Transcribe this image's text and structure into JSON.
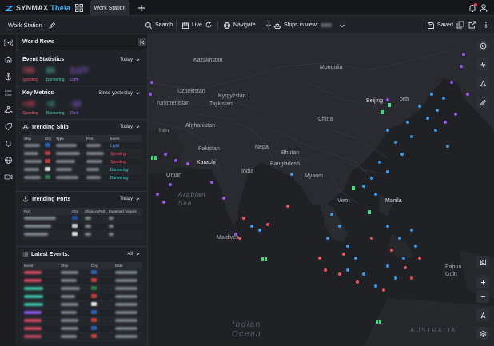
{
  "app": {
    "brand_left": "SYNMAX",
    "brand_right": "Theia",
    "tab_label": "Work Station"
  },
  "toolbar": {
    "workspace_name": "Work Station",
    "search_label": "Search",
    "live_label": "Live",
    "navigate_label": "Navigate",
    "ships_in_view_label": "Ships in view:",
    "saved_label": "Saved"
  },
  "panel": {
    "title": "World News",
    "event_stats": {
      "title": "Event Statistics",
      "filter": "Today",
      "items": [
        {
          "label": "Spoofing",
          "color": "#ff4d6a"
        },
        {
          "label": "Bunkering",
          "color": "#4ad0b0"
        },
        {
          "label": "Dark",
          "color": "#a266ff"
        }
      ]
    },
    "key_metrics": {
      "title": "Key Metrics",
      "filter": "Since yesterday",
      "items": [
        {
          "label": "Spoofing",
          "color": "#ff4d6a"
        },
        {
          "label": "Bunkering",
          "color": "#4ad0b0"
        },
        {
          "label": "Dark",
          "color": "#a266ff"
        }
      ]
    },
    "trending_ship": {
      "title": "Trending Ship",
      "filter": "Today",
      "columns": [
        "Ship",
        "Ctry",
        "Type",
        "Port",
        "Event"
      ],
      "events": [
        {
          "label": "Light",
          "color": "#4aa8ff"
        },
        {
          "label": "Spoofing",
          "color": "#ff4d6a"
        },
        {
          "label": "Spoofing",
          "color": "#ff4d6a"
        },
        {
          "label": "Bunkering",
          "color": "#37d7d0"
        },
        {
          "label": "Bunkering",
          "color": "#37d7d0"
        }
      ]
    },
    "trending_ports": {
      "title": "Trending Ports",
      "filter": "Today",
      "columns": [
        "Port",
        "Ctry",
        "Ships in Port",
        "Expected Arrivals"
      ]
    },
    "latest_events": {
      "title": "Latest Events:",
      "filter": "All",
      "columns": [
        "Event",
        "Ship",
        "Ctry",
        "Date"
      ]
    }
  },
  "map": {
    "labels": {
      "kazakhstan": "Kazakhstan",
      "mongolia": "Mongolia",
      "uzbekistan": "Uzbekistan",
      "kyrgyzstan": "Kyrgyzstan",
      "turkmenistan": "Turkmenistan",
      "tajikistan": "Tajikistan",
      "afghanistan": "Afghanistan",
      "iran": "Iran",
      "china": "China",
      "beijing": "Beijing",
      "pakistan": "Pakistan",
      "nepal": "Nepal",
      "bhutan": "Bhutan",
      "karachi": "Karachi",
      "india": "India",
      "bangladesh": "Bangladesh",
      "oman": "Oman",
      "myanmar": "Myanm",
      "vietnam": "Vietn",
      "manila": "Manila",
      "arabian_sea": "Arabian\nSea",
      "maldives": "Maldives",
      "indian_ocean": "Indian\nOcean",
      "north": "orth",
      "papua": "Papua\nGuin",
      "australia": "AUSTRALIA"
    }
  }
}
